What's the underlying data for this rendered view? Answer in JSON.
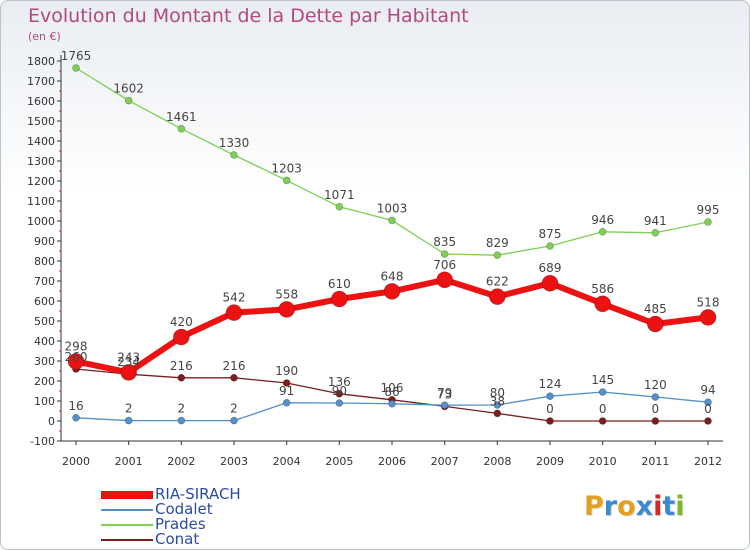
{
  "header": {
    "title": "Evolution du Montant de la Dette par Habitant",
    "unit": "(en €)"
  },
  "brand": {
    "logo_letters": [
      "P",
      "r",
      "o",
      "x",
      "i",
      "t",
      "i"
    ],
    "logo_colors": [
      "#e0a020",
      "#3a8ad0",
      "#e0a020",
      "#3a8ad0",
      "#d02a2a",
      "#3a8ad0",
      "#7ab82a"
    ]
  },
  "chart_data": {
    "type": "line",
    "title": "Evolution du Montant de la Dette par Habitant",
    "ylabel": "(en €)",
    "xlabel": "",
    "x": [
      "2000",
      "2001",
      "2002",
      "2003",
      "2004",
      "2005",
      "2006",
      "2007",
      "2008",
      "2009",
      "2010",
      "2011",
      "2012"
    ],
    "ylim": [
      -100,
      1800
    ],
    "yticks": [
      -100,
      0,
      100,
      200,
      300,
      400,
      500,
      600,
      700,
      800,
      900,
      1000,
      1100,
      1200,
      1300,
      1400,
      1500,
      1600,
      1700,
      1800
    ],
    "grid": false,
    "legend_position": "bottom-left",
    "series": [
      {
        "name": "RIA-SIRACH",
        "color": "#ee1111",
        "width": 6,
        "marker": 8,
        "values": [
          298,
          243,
          420,
          542,
          558,
          610,
          648,
          706,
          622,
          689,
          586,
          485,
          518
        ]
      },
      {
        "name": "Codalet",
        "color": "#5590c8",
        "width": 1.3,
        "marker": 3.5,
        "values": [
          16,
          2,
          2,
          2,
          91,
          90,
          86,
          79,
          80,
          124,
          145,
          120,
          94
        ]
      },
      {
        "name": "Prades",
        "color": "#7fcf55",
        "width": 1.3,
        "marker": 3.5,
        "values": [
          1765,
          1602,
          1461,
          1330,
          1203,
          1071,
          1003,
          835,
          829,
          875,
          946,
          941,
          995
        ]
      },
      {
        "name": "Conat",
        "color": "#7a1e1e",
        "width": 1.3,
        "marker": 3.5,
        "values": [
          260,
          234,
          216,
          216,
          190,
          136,
          106,
          73,
          38,
          0,
          0,
          0,
          0
        ]
      }
    ],
    "draw_order": [
      "Conat",
      "Codalet",
      "Prades",
      "RIA-SIRACH"
    ]
  }
}
